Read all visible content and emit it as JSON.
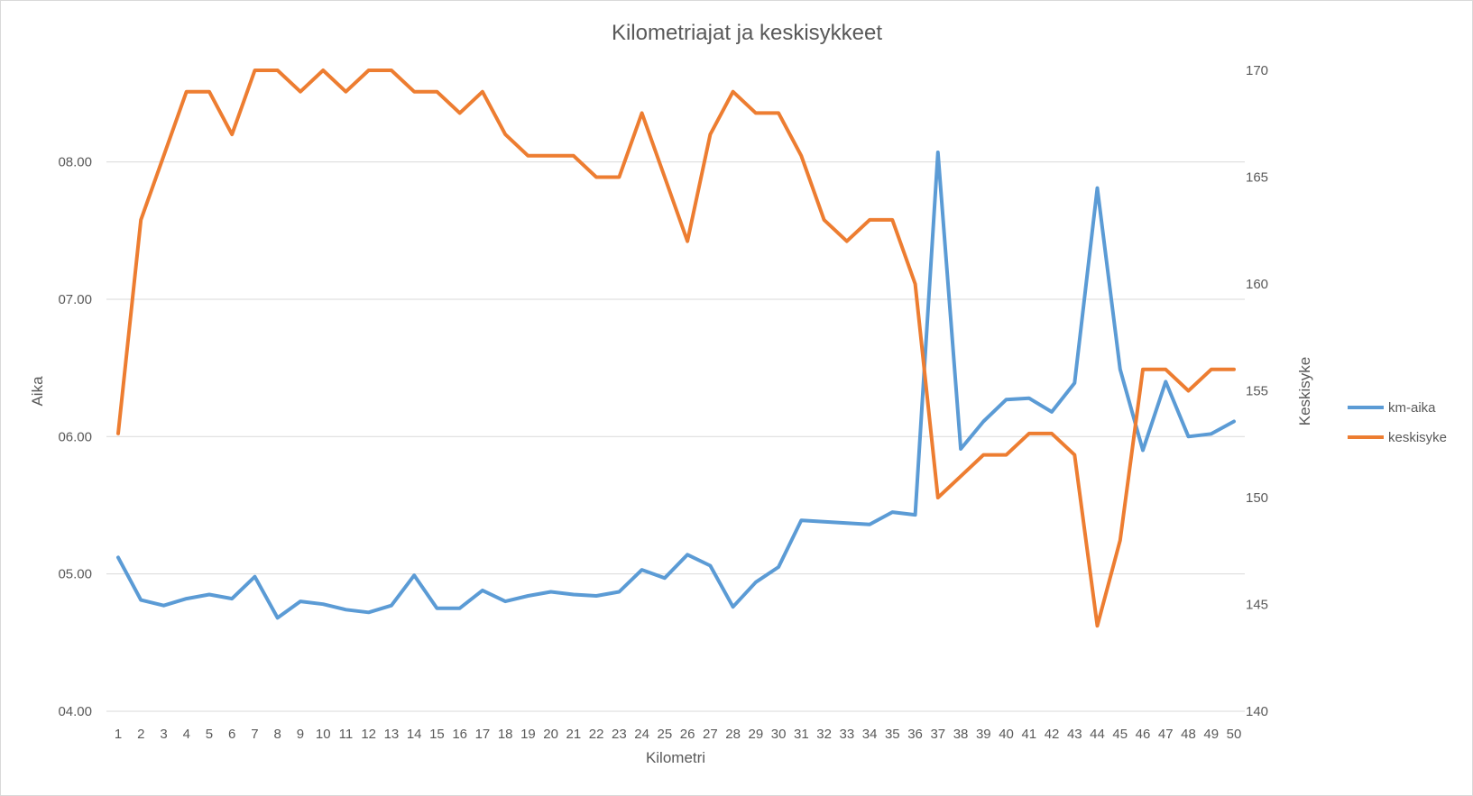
{
  "chart_data": {
    "type": "line",
    "title": "Kilometriajat ja keskisykkeet",
    "xlabel": "Kilometri",
    "ylabel": "Aika",
    "y2label": "Keskisyke",
    "categories": [
      "1",
      "2",
      "3",
      "4",
      "5",
      "6",
      "7",
      "8",
      "9",
      "10",
      "11",
      "12",
      "13",
      "14",
      "15",
      "16",
      "17",
      "18",
      "19",
      "20",
      "21",
      "22",
      "23",
      "24",
      "25",
      "26",
      "27",
      "28",
      "29",
      "30",
      "31",
      "32",
      "33",
      "34",
      "35",
      "36",
      "37",
      "38",
      "39",
      "40",
      "41",
      "42",
      "43",
      "44",
      "45",
      "46",
      "47",
      "48",
      "49",
      "50"
    ],
    "y_ticks": [
      "04.00",
      "05.00",
      "06.00",
      "07.00",
      "08.00"
    ],
    "ylim": [
      4.0,
      8.667
    ],
    "y2_ticks": [
      "140",
      "145",
      "150",
      "155",
      "160",
      "165",
      "170"
    ],
    "y2lim": [
      140,
      170
    ],
    "grid": true,
    "legend_position": "right",
    "series": [
      {
        "name": "km-aika",
        "axis": "left",
        "color": "#5b9bd5",
        "values": [
          5.12,
          4.81,
          4.77,
          4.82,
          4.85,
          4.82,
          4.98,
          4.68,
          4.8,
          4.78,
          4.74,
          4.72,
          4.77,
          4.99,
          4.75,
          4.75,
          4.88,
          4.8,
          4.84,
          4.87,
          4.85,
          4.84,
          4.87,
          5.03,
          4.97,
          5.14,
          5.06,
          4.76,
          4.94,
          5.05,
          5.39,
          5.38,
          5.37,
          5.36,
          5.45,
          5.43,
          8.07,
          5.91,
          6.11,
          6.27,
          6.28,
          6.18,
          6.39,
          7.81,
          6.49,
          5.9,
          6.4,
          6.0,
          6.02,
          6.11
        ]
      },
      {
        "name": "keskisyke",
        "axis": "right",
        "color": "#ed7d31",
        "values": [
          153,
          163,
          166,
          169,
          169,
          167,
          170,
          170,
          169,
          170,
          169,
          170,
          170,
          169,
          169,
          168,
          169,
          167,
          166,
          166,
          166,
          165,
          165,
          168,
          165,
          162,
          167,
          169,
          168,
          168,
          166,
          163,
          162,
          163,
          163,
          160,
          150,
          151,
          152,
          152,
          153,
          153,
          152,
          144,
          148,
          156,
          156,
          155,
          156,
          156
        ]
      }
    ]
  }
}
